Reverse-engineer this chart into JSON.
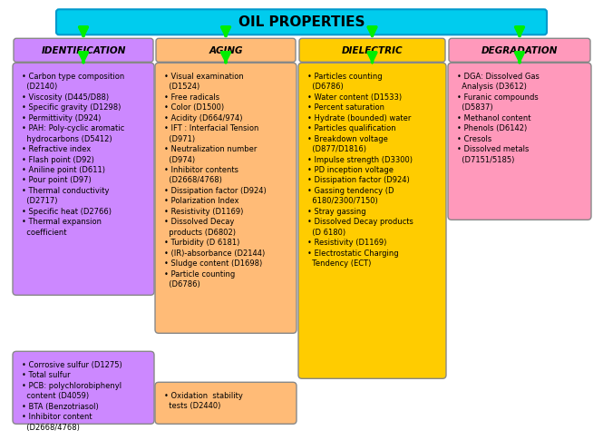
{
  "title": "OIL PROPERTIES",
  "title_bg": "#00CCEE",
  "title_border": "#0099CC",
  "arrow_color": "#00EE00",
  "categories": [
    "IDENTIFICATION",
    "AGING",
    "DIELECTRIC",
    "DEGRADATION"
  ],
  "cat_colors": [
    "#CC88FF",
    "#FFBB77",
    "#FFCC00",
    "#FF99BB"
  ],
  "identification_main": "• Carbon type composition\n  (D2140)\n• Viscosity (D445/D88)\n• Specific gravity (D1298)\n• Permittivity (D924)\n• PAH: Poly-cyclic aromatic\n  hydrocarbons (D5412)\n• Refractive index\n• Flash point (D92)\n• Aniline point (D611)\n• Pour point (D97)\n• Thermal conductivity\n  (D2717)\n• Specific heat (D2766)\n• Thermal expansion\n  coefficient",
  "identification_extra": "• Corrosive sulfur (D1275)\n• Total sulfur\n• PCB: polychlorobiphenyl\n  content (D4059)\n• BTA (Benzotriasol)\n• Inhibitor content\n  (D2668/4768)",
  "aging_main": "• Visual examination\n  (D1524)\n• Free radicals\n• Color (D1500)\n• Acidity (D664/974)\n• IFT : Interfacial Tension\n  (D971)\n• Neutralization number\n  (D974)\n• Inhibitor contents\n  (D2668/4768)\n• Dissipation factor (D924)\n• Polarization Index\n• Resistivity (D1169)\n• Dissolved Decay\n  products (D6802)\n• Turbidity (D 6181)\n• (IR)-absorbance (D2144)\n• Sludge content (D1698)\n• Particle counting\n  (D6786)",
  "aging_extra": "• Oxidation  stability\n  tests (D2440)",
  "dielectric_main": "• Particles counting\n  (D6786)\n• Water content (D1533)\n• Percent saturation\n• Hydrate (bounded) water\n• Particles qualification\n• Breakdown voltage\n  (D877/D1816)\n• Impulse strength (D3300)\n• PD inception voltage\n• Dissipation factor (D924)\n• Gassing tendency (D\n  6180/2300/7150)\n• Stray gassing\n• Dissolved Decay products\n  (D 6180)\n• Resistivity (D1169)\n• Electrostatic Charging\n  Tendency (ECT)",
  "degradation_main": "• DGA: Dissolved Gas\n  Analysis (D3612)\n• Furanic compounds\n  (D5837)\n• Methanol content\n• Phenols (D6142)\n• Cresols\n• Dissolved metals\n  (D7151/5185)",
  "font_size": 6.0,
  "cat_font_size": 7.5,
  "title_font_size": 11
}
